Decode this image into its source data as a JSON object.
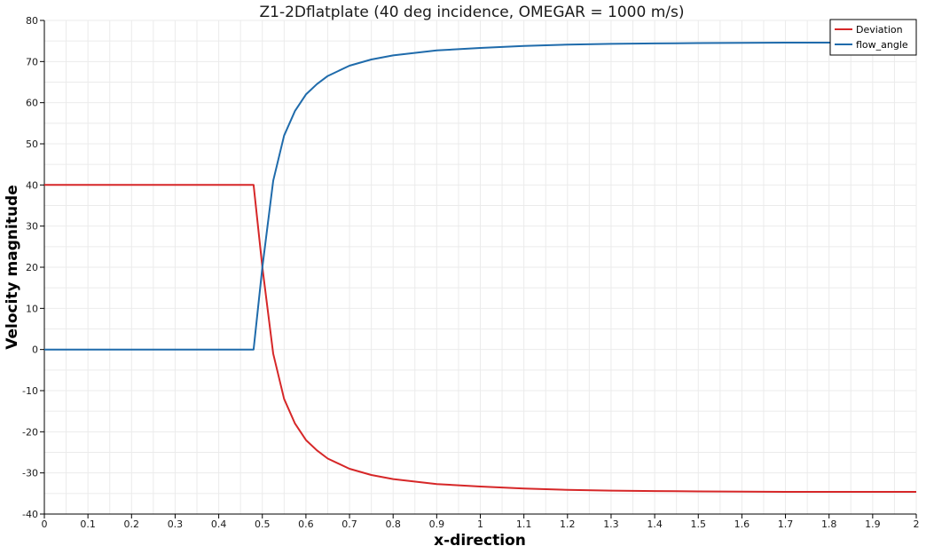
{
  "chart_data": {
    "type": "line",
    "title": "Z1-2Dflatplate (40 deg incidence, OMEGAR = 1000 m/s)",
    "xlabel": "x-direction",
    "ylabel": "Velocity magnitude",
    "xlim": [
      0,
      2
    ],
    "ylim": [
      -40,
      80
    ],
    "xticks": [
      "0",
      "0.1",
      "0.2",
      "0.3",
      "0.4",
      "0.5",
      "0.6",
      "0.7",
      "0.8",
      "0.9",
      "1",
      "1.1",
      "1.2",
      "1.3",
      "1.4",
      "1.5",
      "1.6",
      "1.7",
      "1.8",
      "1.9",
      "2"
    ],
    "yticks": [
      "-40",
      "-30",
      "-20",
      "-10",
      "0",
      "10",
      "20",
      "30",
      "40",
      "50",
      "60",
      "70",
      "80"
    ],
    "grid": true,
    "legend_position": "top-right",
    "series": [
      {
        "name": "Deviation",
        "color": "#d62728",
        "x": [
          0,
          0.48,
          0.5,
          0.525,
          0.55,
          0.575,
          0.6,
          0.625,
          0.65,
          0.7,
          0.75,
          0.8,
          0.9,
          1.0,
          1.1,
          1.2,
          1.3,
          1.4,
          1.5,
          1.6,
          1.7,
          1.8,
          1.9,
          2.0
        ],
        "y": [
          40,
          40,
          20,
          -1,
          -12,
          -18,
          -22,
          -24.5,
          -26.5,
          -29,
          -30.5,
          -31.5,
          -32.7,
          -33.3,
          -33.8,
          -34.1,
          -34.3,
          -34.4,
          -34.5,
          -34.55,
          -34.6,
          -34.6,
          -34.6,
          -34.6
        ]
      },
      {
        "name": "flow_angle",
        "color": "#1f6bab",
        "x": [
          0,
          0.48,
          0.5,
          0.525,
          0.55,
          0.575,
          0.6,
          0.625,
          0.65,
          0.7,
          0.75,
          0.8,
          0.9,
          1.0,
          1.1,
          1.2,
          1.3,
          1.4,
          1.5,
          1.6,
          1.7,
          1.8,
          1.9,
          2.0
        ],
        "y": [
          0,
          0,
          20,
          41,
          52,
          58,
          62,
          64.5,
          66.5,
          69,
          70.5,
          71.5,
          72.7,
          73.3,
          73.8,
          74.1,
          74.3,
          74.4,
          74.5,
          74.55,
          74.6,
          74.6,
          74.6,
          74.6
        ]
      }
    ]
  }
}
